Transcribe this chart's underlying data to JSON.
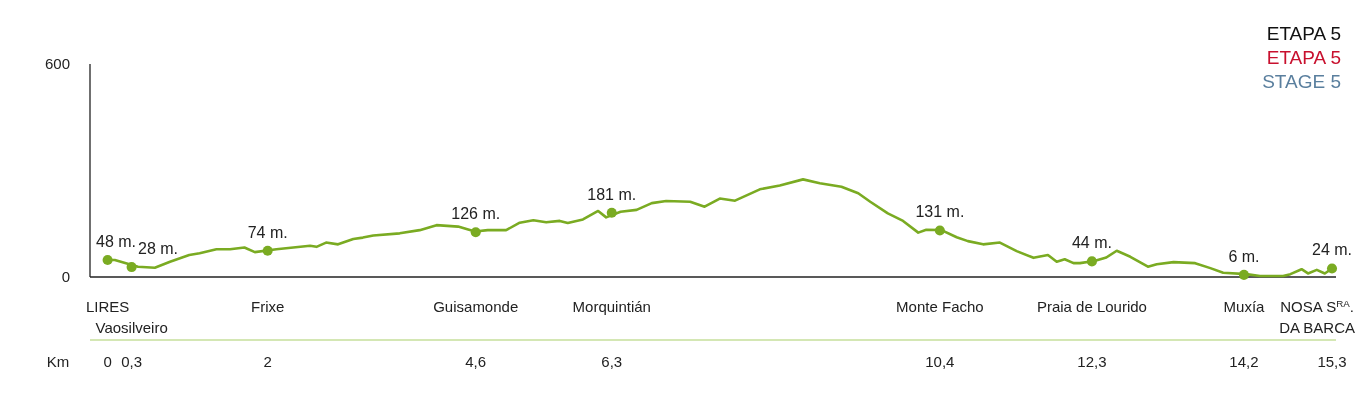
{
  "chart_data": {
    "type": "line",
    "title": "ETAPA 5\nETAPA 5\nSTAGE 5",
    "xlabel": "Km",
    "xlim": [
      -0.22,
      15.35
    ],
    "xticks": [
      0,
      {
        "value": 0.3,
        "label": "0,3"
      },
      2,
      {
        "value": 4.6,
        "label": "4,6"
      },
      {
        "value": 6.3,
        "label": "6,3"
      },
      {
        "value": 10.4,
        "label": "10,4"
      },
      {
        "value": 12.3,
        "label": "12,3"
      },
      {
        "value": 14.2,
        "label": "14,2"
      },
      {
        "value": 15.3,
        "label": "15,3"
      }
    ],
    "annotations": [
      "LIRES",
      "Vaosilveiro",
      "Frixe",
      "Guisamonde",
      "Morquintián",
      "Monte Facho",
      "Praia de Lourido",
      "Muxía",
      "NOSA S$^{RA}$.\nDA BARCA"
    ],
    "ylim": [
      0,
      600
    ],
    "yticks": [
      0,
      600
    ],
    "series": [
      {
        "type": "line",
        "color": "#7aab22",
        "marker": "none",
        "x": [
          0,
          0.09,
          0.38,
          0.59,
          0.78,
          1.02,
          1.15,
          1.36,
          1.53,
          1.71,
          1.84,
          2.11,
          2.32,
          2.53,
          2.61,
          2.73,
          2.88,
          3.07,
          3.19,
          3.32,
          3.65,
          3.9,
          4.11,
          4.38,
          4.59,
          4.75,
          4.98,
          5.15,
          5.32,
          5.48,
          5.65,
          5.75,
          5.94,
          6.13,
          6.23,
          6.41,
          6.61,
          6.8,
          6.98,
          7.28,
          7.46,
          7.65,
          7.84,
          8.15,
          8.4,
          8.69,
          8.9,
          9.17,
          9.38,
          9.53,
          9.75,
          9.94,
          10.13,
          10.23,
          10.42,
          10.61,
          10.75,
          10.94,
          11.15,
          11.36,
          11.57,
          11.75,
          11.86,
          11.96,
          12.07,
          12.15,
          12.33,
          12.48,
          12.61,
          12.78,
          13.0,
          13.11,
          13.32,
          13.59,
          13.78,
          13.94,
          14.23,
          14.4,
          14.69,
          14.78,
          14.92,
          15.0,
          15.11,
          15.21,
          15.3
        ],
        "values": [
          48,
          48,
          29,
          26,
          43,
          62,
          67,
          78,
          78,
          83,
          70,
          78,
          83,
          88,
          85,
          97,
          92,
          107,
          111,
          117,
          123,
          132,
          146,
          142,
          128,
          132,
          132,
          153,
          160,
          154,
          158,
          152,
          162,
          186,
          168,
          184,
          189,
          208,
          214,
          212,
          198,
          221,
          215,
          247,
          258,
          275,
          264,
          254,
          236,
          212,
          179,
          158,
          125,
          133,
          132,
          112,
          101,
          92,
          97,
          73,
          54,
          62,
          43,
          50,
          39,
          39,
          45,
          55,
          74,
          57,
          29,
          36,
          42,
          39,
          25,
          12,
          8,
          3,
          3,
          8,
          22,
          10,
          20,
          10,
          24
        ]
      },
      {
        "type": "scatter",
        "color": "#7aab22",
        "marker": "circle",
        "x": [
          0,
          0.3,
          2,
          4.6,
          6.3,
          10.4,
          12.3,
          14.2,
          15.3
        ],
        "values": [
          48,
          28,
          74,
          126,
          181,
          131,
          44,
          6,
          24
        ],
        "value_labels": [
          "48 m.",
          "28 m.",
          "74 m.",
          "126 m.",
          "181 m.",
          "131 m.",
          "44 m.",
          "6 m.",
          "24 m."
        ]
      }
    ]
  }
}
